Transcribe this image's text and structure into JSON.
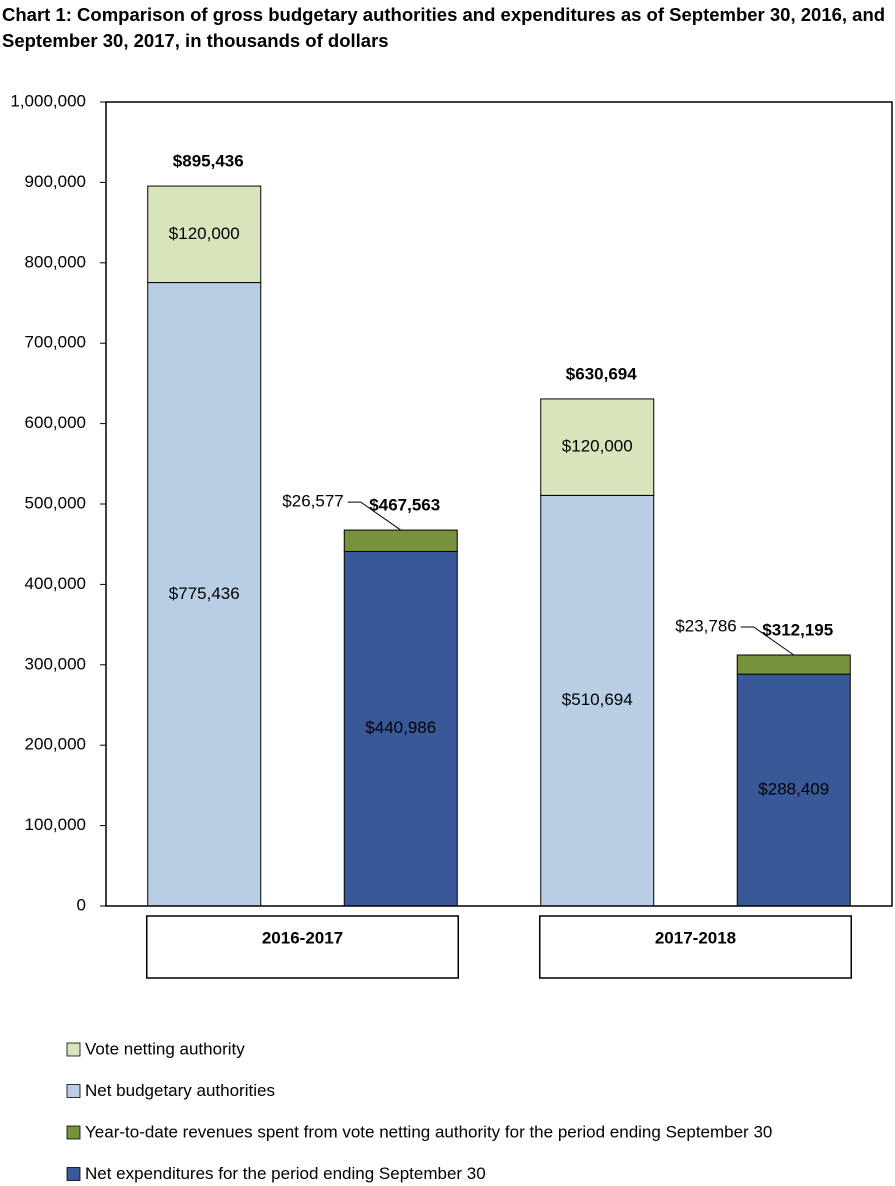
{
  "chart_data": {
    "type": "stacked-bar",
    "title": "Chart 1: Comparison of gross budgetary authorities and expenditures as of September 30, 2016, and September 30, 2017, in thousands of dollars",
    "categories": [
      null,
      null,
      null,
      null
    ],
    "groups": [
      {
        "label": "2016-2017",
        "span": 2
      },
      {
        "label": "2017-2018",
        "span": 2
      }
    ],
    "series": [
      {
        "name": "Vote netting authority",
        "color": "#d8e4bc",
        "values": [
          120000,
          null,
          120000,
          null
        ],
        "value_labels": [
          "$120,000",
          null,
          "$120,000",
          null
        ]
      },
      {
        "name": "Net budgetary authorities",
        "color": "#b9cde5",
        "values": [
          775436,
          null,
          510694,
          null
        ],
        "value_labels": [
          "$775,436",
          null,
          "$510,694",
          null
        ]
      },
      {
        "name": "Year-to-date revenues spent from vote netting authority for the period ending September 30",
        "color": "#77933c",
        "values": [
          null,
          26577,
          null,
          23786
        ],
        "value_labels": [
          null,
          "$26,577",
          null,
          "$23,786"
        ]
      },
      {
        "name": "Net expenditures for the period ending September 30",
        "color": "#385898",
        "values": [
          null,
          440986,
          null,
          288409
        ],
        "value_labels": [
          null,
          "$440,986",
          null,
          "$288,409"
        ]
      }
    ],
    "totals": {
      "values": [
        895436,
        467563,
        630694,
        312195
      ],
      "value_labels": [
        "$895,436",
        "$467,563",
        "$630,694",
        "$312,195"
      ]
    },
    "ylim": [
      0,
      1000000
    ],
    "yticks": [
      0,
      {
        "value": 100000,
        "label": "100,000"
      },
      {
        "value": 200000,
        "label": "200,000"
      },
      {
        "value": 300000,
        "label": "300,000"
      },
      {
        "value": 400000,
        "label": "400,000"
      },
      {
        "value": 500000,
        "label": "500,000"
      },
      {
        "value": 600000,
        "label": "600,000"
      },
      {
        "value": 700000,
        "label": "700,000"
      },
      {
        "value": 800000,
        "label": "800,000"
      },
      {
        "value": 900000,
        "label": "900,000"
      },
      {
        "value": 1000000,
        "label": "1,000,000"
      }
    ],
    "grid": false,
    "legend": "bottom"
  }
}
